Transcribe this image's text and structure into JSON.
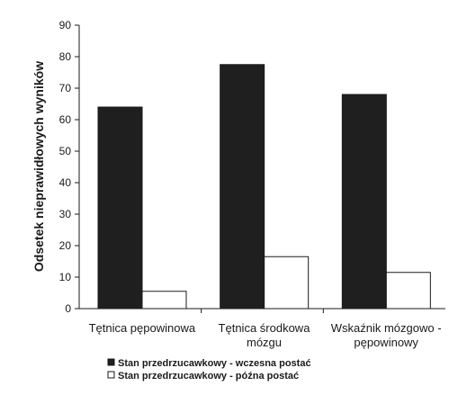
{
  "chart_data": {
    "type": "bar",
    "title": "",
    "xlabel": "",
    "ylabel": "Odsetek nieprawidłowych wyników",
    "ylim": [
      0,
      90
    ],
    "yticks": [
      0,
      10,
      20,
      30,
      40,
      50,
      60,
      70,
      80,
      90
    ],
    "grid": false,
    "legend_position": "bottom",
    "categories": [
      [
        "Tętnica pępowinowa"
      ],
      [
        "Tętnica środkowa",
        "mózgu"
      ],
      [
        "Wskaźnik mózgowo -",
        "pępowinowy"
      ]
    ],
    "series": [
      {
        "name": "Stan przedrzucawkowy - wczesna postać",
        "values": [
          64,
          77.5,
          68
        ],
        "color": "#1f1f1f",
        "legend_marker": "■"
      },
      {
        "name": "Stan przedrzucawkowy - późna postać",
        "values": [
          5.5,
          16.5,
          11.5
        ],
        "color": "#ffffff",
        "legend_marker": "□"
      }
    ]
  }
}
